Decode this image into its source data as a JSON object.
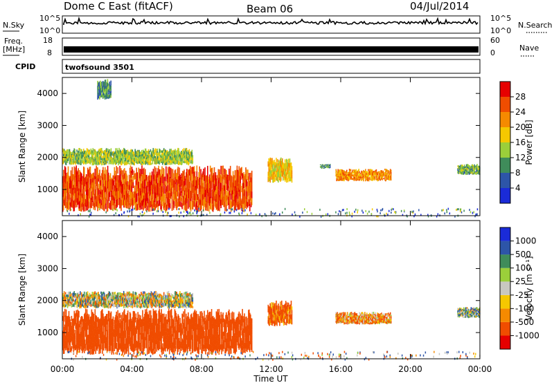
{
  "header": {
    "radar": "Dome C East (fitACF)",
    "beam": "Beam 06",
    "date": "04/Jul/2014"
  },
  "noise_panel": {
    "left_label": "N.Sky",
    "left_ticks": [
      "10^5",
      "10^0"
    ],
    "right_ticks": [
      "10^5",
      "10^0"
    ],
    "right_label": "N.Search"
  },
  "freq_panel": {
    "left_label_1": "Freq.",
    "left_label_2": "[MHz]",
    "left_ticks": [
      "18",
      "8"
    ],
    "right_ticks": [
      "60",
      "0"
    ],
    "right_label": "Nave"
  },
  "cpid_panel": {
    "label": "CPID",
    "value": "twofsound 3501"
  },
  "colors": {
    "power_scale": [
      "#1a2bd8",
      "#2d55a8",
      "#3f8c5a",
      "#9bcf3a",
      "#f5c800",
      "#f58a00",
      "#f04d00",
      "#e60000"
    ],
    "velocity_scale": [
      "#e60000",
      "#f04d00",
      "#f58a00",
      "#f5c800",
      "#c8c8c0",
      "#9bcf3a",
      "#3f8c5a",
      "#2d55a8",
      "#1a2bd8"
    ]
  },
  "chart_data": [
    {
      "type": "heatmap",
      "panel": "power",
      "ylabel": "Slant Range [km]",
      "ylim": [
        180,
        4500
      ],
      "yticks": [
        "1000",
        "2000",
        "3000",
        "4000"
      ],
      "xlim": [
        0,
        24
      ],
      "colorbar": {
        "label": "Power [dB]",
        "range": [
          0,
          32
        ],
        "ticks": [
          "4",
          "8",
          "12",
          "16",
          "20",
          "24",
          "28"
        ]
      },
      "echo_regions": [
        {
          "t0": 0.0,
          "t1": 10.9,
          "r0": 300,
          "r1": 1750,
          "value": 26
        },
        {
          "t0": 0.0,
          "t1": 7.5,
          "r0": 1750,
          "r1": 2300,
          "value": 14
        },
        {
          "t0": 2.0,
          "t1": 2.8,
          "r0": 3800,
          "r1": 4450,
          "value": 10
        },
        {
          "t0": 11.8,
          "t1": 13.2,
          "r0": 1200,
          "r1": 2000,
          "value": 18
        },
        {
          "t0": 14.8,
          "t1": 15.4,
          "r0": 1650,
          "r1": 1800,
          "value": 10
        },
        {
          "t0": 15.7,
          "t1": 18.9,
          "r0": 1250,
          "r1": 1650,
          "value": 22
        },
        {
          "t0": 22.7,
          "t1": 24.0,
          "r0": 1450,
          "r1": 1800,
          "value": 12
        }
      ]
    },
    {
      "type": "heatmap",
      "panel": "velocity",
      "ylabel": "Slant Range [km]",
      "ylim": [
        180,
        4500
      ],
      "yticks": [
        "1000",
        "2000",
        "3000",
        "4000"
      ],
      "xlim": [
        0,
        24
      ],
      "xticks": [
        "00:00",
        "04:00",
        "08:00",
        "12:00",
        "16:00",
        "20:00",
        "00:00"
      ],
      "xlabel": "Time UT",
      "colorbar": {
        "label": "Velocity [m s⁻¹]",
        "ticks": [
          "1000",
          "500",
          "100",
          "25",
          "-25",
          "-100",
          "-500",
          "-1000"
        ]
      },
      "echo_regions": [
        {
          "t0": 0.0,
          "t1": 10.9,
          "r0": 300,
          "r1": 1750,
          "value": -300
        },
        {
          "t0": 0.0,
          "t1": 7.5,
          "r0": 1750,
          "r1": 2300,
          "value": 0
        },
        {
          "t0": 11.8,
          "t1": 13.2,
          "r0": 1200,
          "r1": 2000,
          "value": -150
        },
        {
          "t0": 15.7,
          "t1": 18.9,
          "r0": 1250,
          "r1": 1650,
          "value": -80
        },
        {
          "t0": 22.7,
          "t1": 24.0,
          "r0": 1450,
          "r1": 1800,
          "value": 50
        }
      ]
    }
  ]
}
